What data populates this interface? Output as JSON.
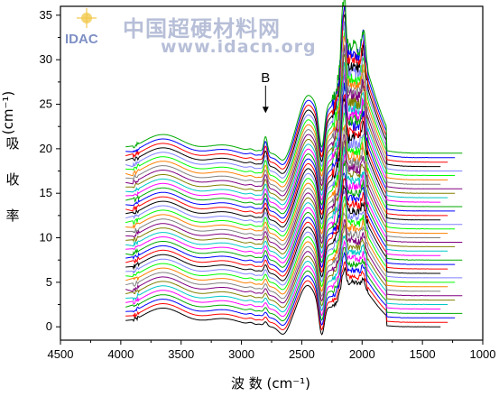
{
  "chart_data": {
    "type": "line",
    "xlabel": "波   数 (cm⁻¹)",
    "ylabel_chars": [
      "吸",
      "收",
      "率"
    ],
    "ylabel_unit": "(cm⁻¹)",
    "xlim": [
      4500,
      1000
    ],
    "ylim": [
      -1.5,
      36
    ],
    "x_ticks": [
      4500,
      4000,
      3500,
      3000,
      2500,
      2000,
      1500,
      1000
    ],
    "y_ticks": [
      0,
      5,
      10,
      15,
      20,
      25,
      30,
      35
    ],
    "grid": false,
    "series_count": 40,
    "series_start_wavenumber": 3900,
    "series_end_wavenumber": 1350,
    "baseline_first": 0,
    "baseline_step": 0.5,
    "colors": [
      "#000000",
      "#ff0000",
      "#0000ff",
      "#00aa00",
      "#ff00ff",
      "#00c8c8",
      "#808000",
      "#800080",
      "#808080",
      "#ff8000",
      "#00ff00",
      "#8080ff"
    ],
    "key_features": {
      "OH_band_center": 3650,
      "CH_band_center": 3150,
      "peak_B_wavenumber": 2800,
      "band_2450_center": 2450,
      "deep_min_wavenumber": 2330,
      "main_band_center": 2050,
      "sharp_peaks": [
        2160,
        2140,
        1980
      ]
    },
    "annotations": [
      {
        "label": "B",
        "x": 2800,
        "y_text": 27.5,
        "arrow_to_y": 24.0
      }
    ]
  },
  "watermark": {
    "logo_text": "IDAC",
    "chinese": "中国超硬材料网",
    "url": "www.idacn.org"
  }
}
